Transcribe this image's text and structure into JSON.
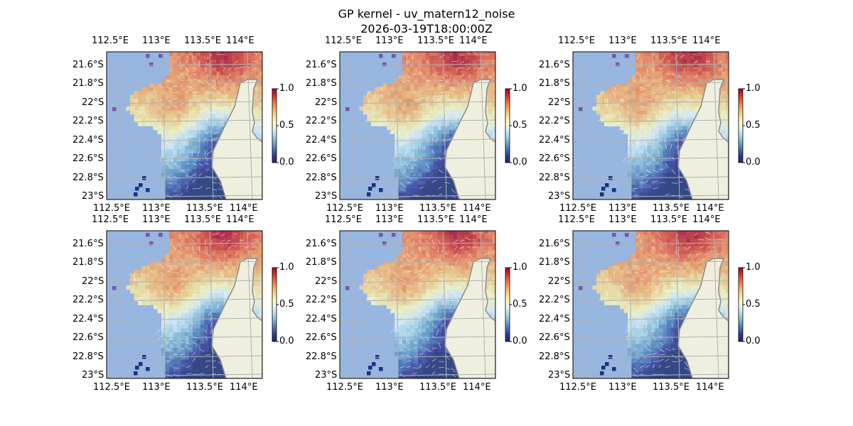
{
  "figure": {
    "title_line1": "GP kernel - uv_matern12_noise",
    "title_line2": "2026-03-19T18:00:00Z"
  },
  "colors": {
    "ocean": "#97b6e0",
    "land": "#efefdf",
    "coastline": "#8a8a8a",
    "gridlines": "#b0b0b0",
    "quiver": "#ffffff",
    "colormap": [
      "#1a2a6c",
      "#313695",
      "#4575b4",
      "#74add1",
      "#abd9e9",
      "#e0f3f8",
      "#ffffbf",
      "#fee090",
      "#fdae61",
      "#f46d43",
      "#d73027",
      "#a50026"
    ]
  },
  "chart_data": {
    "type": "heatmap",
    "panel_count": 6,
    "layout": "2 rows x 3 columns",
    "lon_ticks": [
      "112.5°E",
      "113°E",
      "113.5°E",
      "114°E"
    ],
    "lat_ticks": [
      "21.6°S",
      "21.8°S",
      "22°S",
      "22.2°S",
      "22.4°S",
      "22.6°S",
      "22.8°S",
      "23°S"
    ],
    "colorbar": {
      "range": [
        0.0,
        1.0
      ],
      "ticks": [
        "0.0",
        "0.5",
        "1.0"
      ],
      "colormap": "RdYlBu_r"
    },
    "extent": {
      "lon": [
        112.45,
        114.2
      ],
      "lat": [
        -23.03,
        -21.46
      ]
    },
    "description_of_field": "values high (~0.6-0.8) in the north and west, low (~0.0-0.2) near the south-east coast; land shown in beige; quiver arrows overlaid"
  },
  "panels": [
    {
      "id": 1
    },
    {
      "id": 2
    },
    {
      "id": 3
    },
    {
      "id": 4
    },
    {
      "id": 5
    },
    {
      "id": 6
    }
  ]
}
